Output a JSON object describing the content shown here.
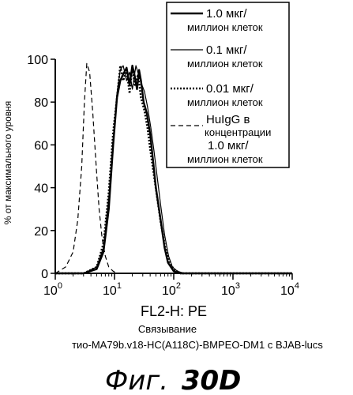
{
  "chart_data": {
    "type": "line",
    "xscale": "log",
    "xlim": [
      1,
      10000
    ],
    "ylim": [
      0,
      100
    ],
    "x_ticks": [
      1,
      10,
      100,
      1000,
      10000
    ],
    "x_tick_labels": [
      {
        "base": "10",
        "exp": "0"
      },
      {
        "base": "10",
        "exp": "1"
      },
      {
        "base": "10",
        "exp": "2"
      },
      {
        "base": "10",
        "exp": "3"
      },
      {
        "base": "10",
        "exp": "4"
      }
    ],
    "y_ticks": [
      0,
      20,
      40,
      60,
      80,
      100
    ],
    "y_tick_labels": [
      "0",
      "20",
      "40",
      "60",
      "80",
      "100"
    ],
    "xlabel": "FL2-H: PE",
    "ylabel": "% от максимального уровня",
    "caption_line1": "Связывание",
    "caption_line2": "тио-MA79b.v18-HC(A118C)-BMPEO-DM1 с BJAB-lucs",
    "figure_title_prefix": "Фиг.",
    "figure_title_number": "30D",
    "legend": [
      {
        "line1": "1.0 мкг/",
        "line2": "миллион клеток",
        "style": "solid-thick"
      },
      {
        "line1": "0.1 мкг/",
        "line2": "миллион клеток",
        "style": "solid-thin"
      },
      {
        "line1": "0.01 мкг/",
        "line2": "миллион клеток",
        "style": "dotted"
      },
      {
        "line1": "HuIgG в",
        "line2": "концентрации",
        "line3": "1.0 мкг/",
        "line4": "миллион клеток",
        "style": "dashed"
      }
    ],
    "series": [
      {
        "style": "solid-thick",
        "x": [
          1,
          3,
          5,
          6.5,
          8,
          9.5,
          11,
          12.5,
          14,
          16,
          18,
          20,
          22,
          24,
          26,
          28,
          31,
          35,
          40,
          45,
          50,
          60,
          70,
          80,
          100,
          130,
          10000
        ],
        "y": [
          0,
          0,
          2,
          10,
          30,
          60,
          82,
          90,
          93,
          96,
          88,
          97,
          92,
          86,
          95,
          90,
          80,
          75,
          65,
          52,
          40,
          25,
          12,
          5,
          1,
          0,
          0
        ]
      },
      {
        "style": "solid-thin",
        "x": [
          1,
          3,
          5,
          6.5,
          8,
          9.5,
          11,
          12.5,
          14,
          16,
          18,
          20,
          23,
          26,
          29,
          32,
          36,
          41,
          46,
          52,
          60,
          70,
          82,
          95,
          115,
          150,
          10000
        ],
        "y": [
          0,
          0,
          3,
          12,
          35,
          63,
          84,
          95,
          97,
          90,
          94,
          86,
          97,
          92,
          88,
          85,
          78,
          68,
          58,
          46,
          32,
          18,
          8,
          3,
          1,
          0,
          0
        ]
      },
      {
        "style": "dotted",
        "x": [
          1,
          3,
          5,
          6.5,
          8,
          9.5,
          11,
          12.5,
          14,
          16,
          18,
          20,
          22,
          25,
          28,
          32,
          36,
          40,
          45,
          52,
          60,
          72,
          85,
          100,
          130,
          10000
        ],
        "y": [
          0,
          0,
          3,
          14,
          38,
          66,
          82,
          97,
          90,
          95,
          84,
          96,
          88,
          93,
          82,
          76,
          68,
          58,
          48,
          36,
          24,
          12,
          5,
          2,
          0,
          0
        ]
      },
      {
        "style": "dashed",
        "x": [
          1,
          1.5,
          2,
          2.4,
          2.8,
          3.1,
          3.4,
          3.8,
          4.3,
          4.9,
          5.5,
          6.2,
          7,
          8,
          9.5,
          11,
          13,
          10000
        ],
        "y": [
          0,
          3,
          10,
          25,
          50,
          80,
          98,
          94,
          75,
          50,
          30,
          16,
          8,
          3,
          1,
          0,
          0,
          0
        ]
      }
    ]
  }
}
